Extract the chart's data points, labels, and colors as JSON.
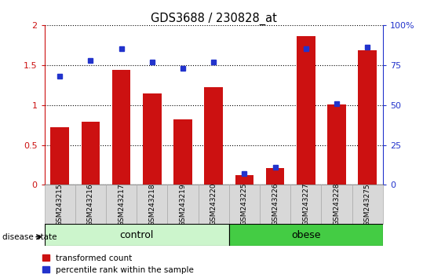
{
  "title": "GDS3688 / 230828_at",
  "samples": [
    "GSM243215",
    "GSM243216",
    "GSM243217",
    "GSM243218",
    "GSM243219",
    "GSM243220",
    "GSM243225",
    "GSM243226",
    "GSM243227",
    "GSM243228",
    "GSM243275"
  ],
  "red_values": [
    0.72,
    0.79,
    1.44,
    1.14,
    0.82,
    1.22,
    0.12,
    0.21,
    1.86,
    1.01,
    1.68
  ],
  "blue_values_pct": [
    68,
    78,
    85,
    77,
    73,
    77,
    7,
    11,
    85,
    51,
    86
  ],
  "red_color": "#cc1111",
  "blue_color": "#2233cc",
  "ylim_left": [
    0,
    2
  ],
  "ylim_right": [
    0,
    100
  ],
  "yticks_left": [
    0,
    0.5,
    1.0,
    1.5,
    2.0
  ],
  "ytick_labels_left": [
    "0",
    "0.5",
    "1",
    "1.5",
    "2"
  ],
  "yticks_right": [
    0,
    25,
    50,
    75,
    100
  ],
  "ytick_labels_right": [
    "0",
    "25",
    "50",
    "75",
    "100%"
  ],
  "control_group_count": 6,
  "obese_group_count": 5,
  "group_label_control": "control",
  "group_label_obese": "obese",
  "disease_state_label": "disease state",
  "legend_red": "transformed count",
  "legend_blue": "percentile rank within the sample",
  "bar_width": 0.6,
  "control_color": "#ccf5cc",
  "obese_color": "#44cc44",
  "label_bg_color": "#d8d8d8",
  "label_border_color": "#aaaaaa"
}
